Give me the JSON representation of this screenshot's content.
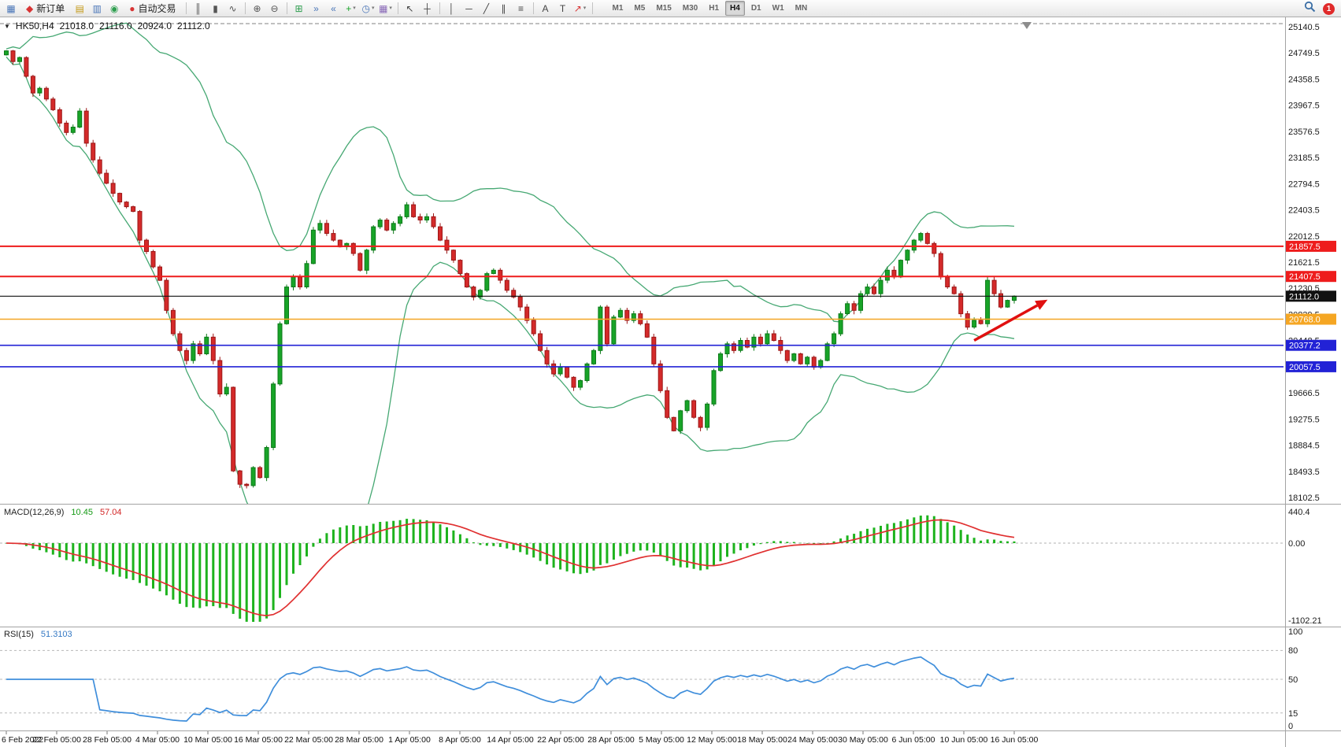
{
  "toolbar": {
    "items": [
      {
        "t": "icon",
        "name": "new-chart-button",
        "glyph": "▦",
        "color": "#4a76b8"
      },
      {
        "t": "labeled",
        "name": "new-order-button",
        "glyph": "◆",
        "color": "#d83434",
        "label": "新订单"
      },
      {
        "t": "icon",
        "name": "market-watch-button",
        "glyph": "▤",
        "color": "#c59a18"
      },
      {
        "t": "icon",
        "name": "data-window-button",
        "glyph": "▥",
        "color": "#4a76b8"
      },
      {
        "t": "icon",
        "name": "navigator-button",
        "glyph": "◉",
        "color": "#2e9e4f"
      },
      {
        "t": "labeled",
        "name": "autotrade-button",
        "glyph": "●",
        "color": "#d83434",
        "label": "自动交易"
      },
      {
        "t": "sep"
      },
      {
        "t": "icon",
        "name": "bars-chart-button",
        "glyph": "║",
        "color": "#555555"
      },
      {
        "t": "icon",
        "name": "candles-chart-button",
        "glyph": "▮",
        "color": "#555555"
      },
      {
        "t": "icon",
        "name": "line-chart-button",
        "glyph": "∿",
        "color": "#555555"
      },
      {
        "t": "sep"
      },
      {
        "t": "icon",
        "name": "zoom-in-button",
        "glyph": "⊕",
        "color": "#555555"
      },
      {
        "t": "icon",
        "name": "zoom-out-button",
        "glyph": "⊖",
        "color": "#555555"
      },
      {
        "t": "sep"
      },
      {
        "t": "icon",
        "name": "tile-windows-button",
        "glyph": "⊞",
        "color": "#2e9e4f"
      },
      {
        "t": "icon",
        "name": "auto-scroll-button",
        "glyph": "»",
        "color": "#4a76b8"
      },
      {
        "t": "icon",
        "name": "chart-shift-button",
        "glyph": "«",
        "color": "#4a76b8"
      },
      {
        "t": "dropdown",
        "name": "indicators-menu",
        "glyph": "+",
        "color": "#18a428"
      },
      {
        "t": "dropdown",
        "name": "periods-menu",
        "glyph": "◷",
        "color": "#4a76b8"
      },
      {
        "t": "dropdown",
        "name": "templates-menu",
        "glyph": "▦",
        "color": "#8a6ab8"
      },
      {
        "t": "sep"
      },
      {
        "t": "icon",
        "name": "cursor-button",
        "glyph": "↖",
        "color": "#444444"
      },
      {
        "t": "icon",
        "name": "crosshair-button",
        "glyph": "┼",
        "color": "#444444"
      },
      {
        "t": "sep"
      },
      {
        "t": "icon",
        "name": "vertical-line-button",
        "glyph": "│",
        "color": "#444444"
      },
      {
        "t": "icon",
        "name": "horizontal-line-button",
        "glyph": "─",
        "color": "#444444"
      },
      {
        "t": "icon",
        "name": "trendline-button",
        "glyph": "╱",
        "color": "#444444"
      },
      {
        "t": "icon",
        "name": "channel-button",
        "glyph": "∥",
        "color": "#444444"
      },
      {
        "t": "icon",
        "name": "fibonacci-button",
        "glyph": "≡",
        "color": "#444444"
      },
      {
        "t": "sep"
      },
      {
        "t": "icon",
        "name": "text-button",
        "glyph": "A",
        "color": "#444444"
      },
      {
        "t": "icon",
        "name": "label-button",
        "glyph": "T",
        "color": "#444444"
      },
      {
        "t": "dropdown",
        "name": "arrows-menu",
        "glyph": "↗",
        "color": "#d83434"
      },
      {
        "t": "sep"
      }
    ],
    "timeframes": {
      "options": [
        "M1",
        "M5",
        "M15",
        "M30",
        "H1",
        "H4",
        "D1",
        "W1",
        "MN"
      ],
      "active": "H4"
    },
    "notification_count": "1"
  },
  "chart_data": {
    "type": "candlestick",
    "title": "HK50,H4",
    "header": {
      "collapse_icon": "▼",
      "symbol": "HK50,H4",
      "open": "21018.0",
      "high": "21116.0",
      "low": "20924.0",
      "close": "21112.0"
    },
    "closes": [
      24720,
      24780,
      24620,
      24680,
      24400,
      24150,
      24220,
      24060,
      23900,
      23700,
      23560,
      23640,
      23880,
      23400,
      23150,
      22950,
      22800,
      22650,
      22520,
      22450,
      22380,
      21950,
      21780,
      21550,
      21350,
      20900,
      20550,
      20300,
      20150,
      20400,
      20250,
      20500,
      20150,
      19650,
      19750,
      18500,
      18300,
      18280,
      18550,
      18400,
      18850,
      19800,
      20700,
      21250,
      21400,
      21250,
      21600,
      22100,
      22200,
      22050,
      21950,
      21850,
      21900,
      21750,
      21500,
      21800,
      22150,
      22250,
      22100,
      22200,
      22300,
      22480,
      22300,
      22250,
      22300,
      22150,
      21950,
      21800,
      21650,
      21450,
      21250,
      21100,
      21200,
      21450,
      21500,
      21350,
      21200,
      21100,
      20950,
      20750,
      20550,
      20300,
      20100,
      19950,
      20050,
      19900,
      19750,
      19850,
      20100,
      20300,
      20950,
      20400,
      20800,
      20900,
      20750,
      20850,
      20700,
      20500,
      20100,
      19700,
      19300,
      19100,
      19400,
      19550,
      19300,
      19150,
      19500,
      20000,
      20250,
      20400,
      20300,
      20450,
      20350,
      20500,
      20400,
      20550,
      20450,
      20300,
      20150,
      20250,
      20100,
      20200,
      20050,
      20150,
      20400,
      20550,
      20850,
      21000,
      20900,
      21150,
      21250,
      21150,
      21350,
      21500,
      21400,
      21650,
      21800,
      21950,
      22050,
      21900,
      21750,
      21400,
      21250,
      21150,
      20850,
      20650,
      20750,
      20700,
      21350,
      21150,
      20950,
      21050,
      21112
    ],
    "price_axis": {
      "max": 25140.5,
      "min": 18102.5,
      "step": 391.0,
      "ticks": [
        25140.5,
        24749.5,
        24358.5,
        23967.5,
        23576.5,
        23185.5,
        22794.5,
        22403.5,
        22012.5,
        21621.5,
        21230.5,
        20839.5,
        20448.5,
        20057.5,
        19666.5,
        19275.5,
        18884.5,
        18493.5,
        18102.5
      ]
    },
    "time_axis": [
      "6 Feb 2022",
      "22 Feb 05:00",
      "28 Feb 05:00",
      "4 Mar 05:00",
      "10 Mar 05:00",
      "16 Mar 05:00",
      "22 Mar 05:00",
      "28 Mar 05:00",
      "1 Apr 05:00",
      "8 Apr 05:00",
      "14 Apr 05:00",
      "22 Apr 05:00",
      "28 Apr 05:00",
      "5 May 05:00",
      "12 May 05:00",
      "18 May 05:00",
      "24 May 05:00",
      "30 May 05:00",
      "6 Jun 05:00",
      "10 Jun 05:00",
      "16 Jun 05:00"
    ],
    "bollinger": {
      "period": 20,
      "deviation": 2,
      "color": "#46a873"
    },
    "candle_colors": {
      "up": "#18a428",
      "up_stroke": "#0c7a18",
      "down": "#d42a2a",
      "down_stroke": "#9c1616"
    },
    "hlines": [
      {
        "price": 21857.5,
        "label": "21857.5",
        "color": "#ee1c1c",
        "width": 2
      },
      {
        "price": 21407.5,
        "label": "21407.5",
        "color": "#ee1c1c",
        "width": 2
      },
      {
        "price": 21112.0,
        "label": "21112.0",
        "color": "#111111",
        "width": 1.1
      },
      {
        "price": 20768.0,
        "label": "20768.0",
        "color": "#f5a623",
        "width": 1.6
      },
      {
        "price": 20377.2,
        "label": "20377.2",
        "color": "#2222d6",
        "width": 1.6
      },
      {
        "price": 20057.5,
        "label": "20057.5",
        "color": "#2222d6",
        "width": 1.6
      }
    ],
    "trend_arrow": {
      "from_candle": 145,
      "from_price": 20450,
      "to_candle": 156,
      "to_price": 21060,
      "color": "#e01010"
    },
    "shift_marker_frac": 0.8,
    "macd": {
      "name": "MACD(12,26,9)",
      "value_main": "10.45",
      "value_signal": "57.04",
      "fast": 12,
      "slow": 26,
      "signal": 9,
      "axis_labels": [
        "440.4",
        "0.00",
        "-1102.21"
      ],
      "histogram_color": "#1db31d",
      "signal_color": "#e03030"
    },
    "rsi": {
      "name": "RSI(15)",
      "period": 15,
      "value": "51.3103",
      "axis_labels": [
        "100",
        "80",
        "50",
        "15",
        "0"
      ],
      "levels": [
        80,
        50,
        15
      ],
      "color": "#3f8edb"
    }
  }
}
